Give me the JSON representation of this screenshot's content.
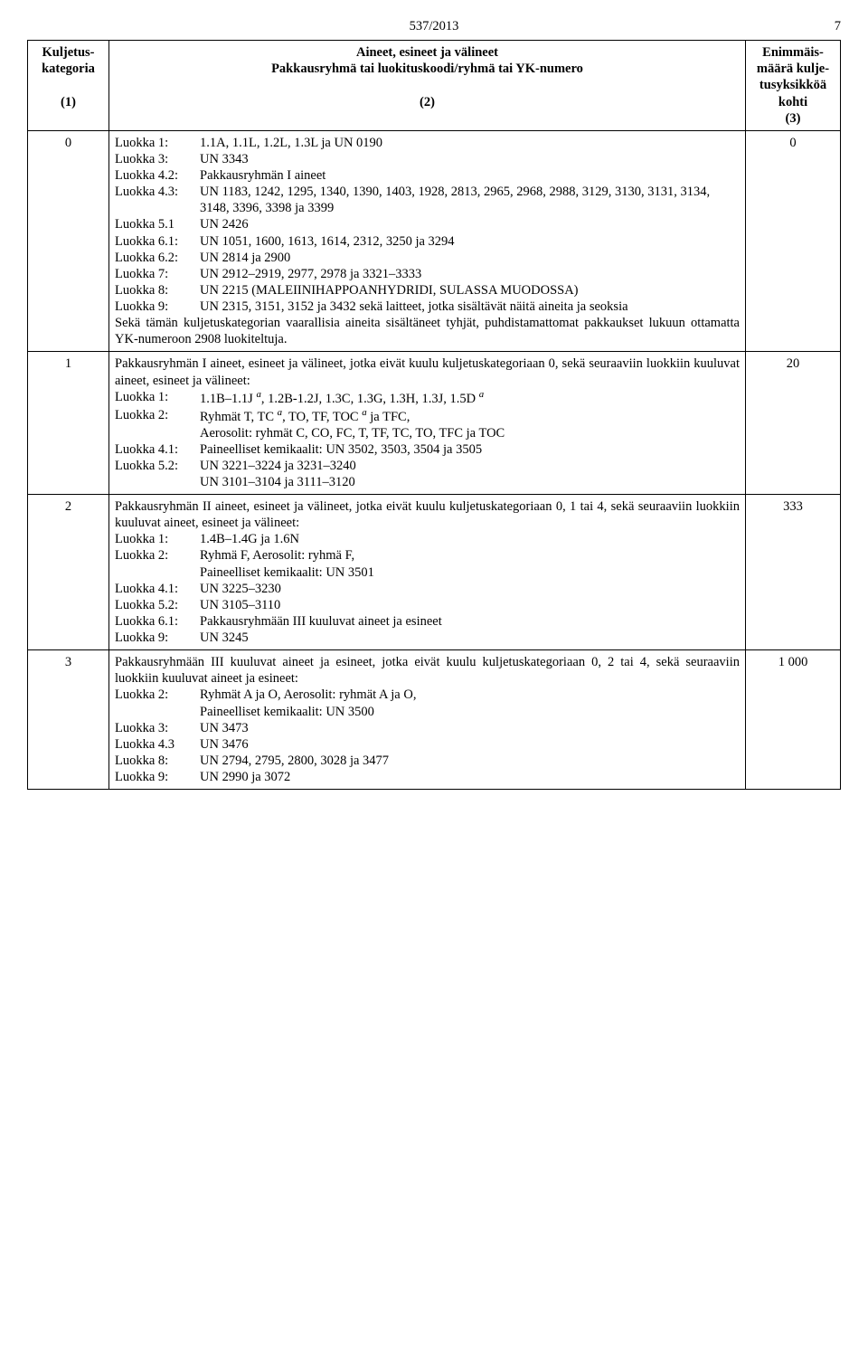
{
  "document_number": "537/2013",
  "page_number": "7",
  "headers": {
    "col1_l1": "Kuljetus-",
    "col1_l2": "kategoria",
    "col1_sub": "(1)",
    "col2_l1": "Aineet, esineet ja välineet",
    "col2_l2": "Pakkausryhmä tai luokituskoodi/ryhmä tai YK-numero",
    "col2_sub": "(2)",
    "col3_l1": "Enimmäis-",
    "col3_l2": "määrä kulje-",
    "col3_l3": "tusyksikköä",
    "col3_l4": "kohti",
    "col3_sub": "(3)"
  },
  "rows": [
    {
      "kat": "0",
      "max": "0",
      "lines": [
        {
          "label": "Luokka 1:",
          "text": "1.1A, 1.1L, 1.2L, 1.3L ja UN 0190"
        },
        {
          "label": "Luokka 3:",
          "text": "UN 3343"
        },
        {
          "label": "Luokka 4.2:",
          "text": "Pakkausryhmän I aineet"
        },
        {
          "label": "Luokka 4.3:",
          "text": "UN 1183, 1242, 1295, 1340, 1390, 1403, 1928, 2813, 2965, 2968, 2988, 3129, 3130, 3131, 3134, 3148, 3396, 3398 ja 3399"
        },
        {
          "label": "Luokka 5.1",
          "text": "UN 2426"
        },
        {
          "label": "Luokka 6.1:",
          "text": "UN 1051, 1600, 1613, 1614, 2312, 3250 ja 3294"
        },
        {
          "label": "Luokka 6.2:",
          "text": "UN 2814 ja 2900"
        },
        {
          "label": "Luokka 7:",
          "text": "UN 2912–2919, 2977, 2978 ja 3321–3333"
        },
        {
          "label": "Luokka 8:",
          "text": "UN 2215 (MALEIINIHAPPOANHYDRIDI, SULASSA MUODOSSA)"
        },
        {
          "label": "Luokka 9:",
          "text": "UN 2315, 3151, 3152 ja 3432 sekä laitteet, jotka sisältävät näitä aineita ja seoksia"
        }
      ],
      "tail": "Sekä tämän kuljetuskategorian vaarallisia aineita sisältäneet tyhjät, puhdistamattomat pakkaukset lukuun ottamatta YK-numeroon 2908 luokiteltuja."
    },
    {
      "kat": "1",
      "max": "20",
      "intro": "Pakkausryhmän I aineet, esineet ja välineet, jotka eivät kuulu kuljetuskategoriaan 0, sekä seuraaviin luokkiin kuuluvat aineet, esineet ja välineet:",
      "lines": [
        {
          "label": "Luokka 1:",
          "text_html": "1.1B–1.1J <span class=\"sup\">a</span>, 1.2B-1.2J, 1.3C, 1.3G, 1.3H, 1.3J, 1.5D <span class=\"sup\">a</span>"
        },
        {
          "label": "Luokka 2:",
          "text_html": "Ryhmät T, TC <span class=\"sup\">a</span>, TO, TF, TOC <span class=\"sup\">a</span> ja TFC,<br>Aerosolit: ryhmät C, CO, FC, T, TF, TC, TO, TFC ja TOC"
        },
        {
          "label": "Luokka 4.1:",
          "text": "Paineelliset kemikaalit: UN 3502, 3503, 3504 ja 3505"
        },
        {
          "label": "Luokka 5.2:",
          "text": "UN 3221–3224 ja 3231–3240"
        },
        {
          "label": "",
          "text": "UN 3101–3104 ja 3111–3120"
        }
      ]
    },
    {
      "kat": "2",
      "max": "333",
      "intro": "Pakkausryhmän II aineet, esineet ja välineet, jotka eivät kuulu kuljetuskategoriaan 0, 1 tai 4, sekä seuraaviin luokkiin kuuluvat aineet, esineet ja välineet:",
      "lines": [
        {
          "label": "Luokka 1:",
          "text": "1.4B–1.4G ja 1.6N"
        },
        {
          "label": "Luokka 2:",
          "text_html": "Ryhmä F, Aerosolit: ryhmä F,<br>Paineelliset kemikaalit: UN 3501"
        },
        {
          "label": "Luokka 4.1:",
          "text": "UN 3225–3230"
        },
        {
          "label": "Luokka 5.2:",
          "text": "UN 3105–3110"
        },
        {
          "label": "Luokka 6.1:",
          "text": "Pakkausryhmään III kuuluvat aineet ja esineet"
        },
        {
          "label": "Luokka 9:",
          "text": "UN 3245"
        }
      ]
    },
    {
      "kat": "3",
      "max": "1 000",
      "intro": "Pakkausryhmään III kuuluvat aineet ja esineet, jotka eivät kuulu kuljetuskategoriaan 0, 2 tai 4, sekä seuraaviin luokkiin kuuluvat aineet ja esineet:",
      "lines": [
        {
          "label": "Luokka 2:",
          "text_html": "Ryhmät A ja O, Aerosolit: ryhmät A ja O,<br>Paineelliset kemikaalit: UN 3500"
        },
        {
          "label": "Luokka 3:",
          "text": "UN 3473"
        },
        {
          "label": "Luokka 4.3",
          "text": "UN 3476"
        },
        {
          "label": "Luokka 8:",
          "text": "UN 2794, 2795, 2800, 3028 ja 3477"
        },
        {
          "label": "Luokka 9:",
          "text": "UN 2990 ja 3072"
        }
      ]
    }
  ]
}
